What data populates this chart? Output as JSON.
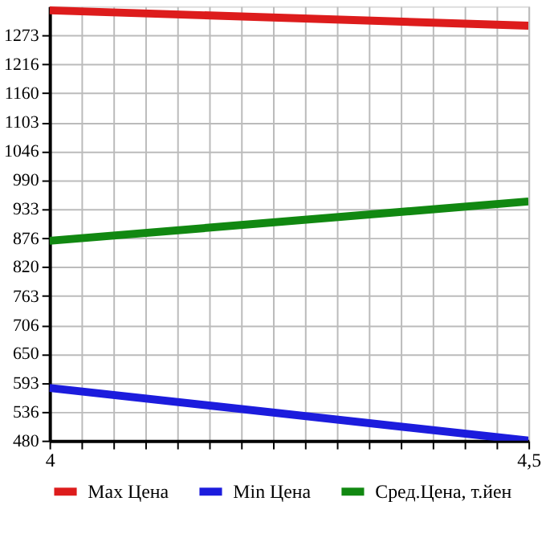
{
  "chart_data": {
    "type": "line",
    "x": [
      4,
      4.5
    ],
    "series": [
      {
        "name": "Max Цена",
        "color": "#dd1c1c",
        "values": [
          1322,
          1292
        ]
      },
      {
        "name": "Min Цена",
        "color": "#1c1cdd",
        "values": [
          583,
          480
        ]
      },
      {
        "name": "Сред.Цена, т.йен",
        "color": "#118811",
        "values": [
          871,
          948
        ]
      }
    ],
    "xlim": [
      4,
      4.5
    ],
    "xticks": [
      {
        "value": 4,
        "label": "4"
      },
      {
        "value": 4.033,
        "label": null
      },
      {
        "value": 4.067,
        "label": null
      },
      {
        "value": 4.1,
        "label": null
      },
      {
        "value": 4.133,
        "label": null
      },
      {
        "value": 4.167,
        "label": null
      },
      {
        "value": 4.2,
        "label": null
      },
      {
        "value": 4.233,
        "label": null
      },
      {
        "value": 4.267,
        "label": null
      },
      {
        "value": 4.3,
        "label": null
      },
      {
        "value": 4.333,
        "label": null
      },
      {
        "value": 4.367,
        "label": null
      },
      {
        "value": 4.4,
        "label": null
      },
      {
        "value": 4.433,
        "label": null
      },
      {
        "value": 4.467,
        "label": null
      },
      {
        "value": 4.5,
        "label": "4,5"
      }
    ],
    "ylim": [
      480,
      1330
    ],
    "yticks": [
      480,
      536,
      593,
      650,
      706,
      763,
      820,
      876,
      933,
      990,
      1046,
      1103,
      1160,
      1216,
      1273
    ],
    "grid": true,
    "legend": "bottom",
    "marker": "none",
    "line_style": "solid"
  }
}
